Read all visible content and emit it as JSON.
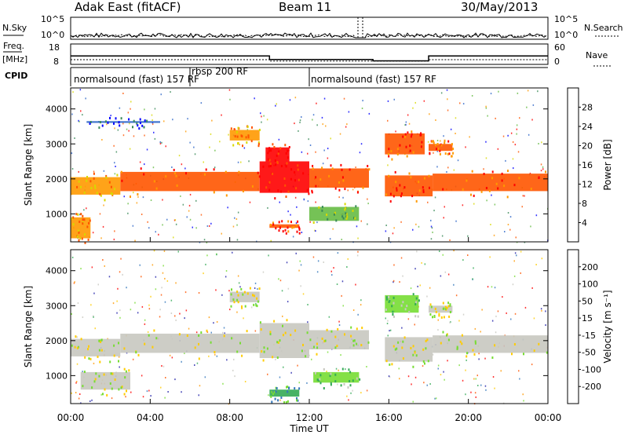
{
  "header": {
    "station": "Adak East (fitACF)",
    "beam": "Beam 11",
    "date": "30/May/2013"
  },
  "labels": {
    "nsky": "N.Sky",
    "nsearch": "N.Search",
    "freq_line1": "Freq.",
    "freq_line2": "[MHz]",
    "nave": "Nave",
    "cpid": "CPID",
    "slant_range": "Slant Range [km]",
    "power_title": "Power [dB]",
    "velocity_title": "Velocity [m s⁻¹]",
    "x_axis_title": "Time UT"
  },
  "chart_data": [
    {
      "type": "line",
      "panel": "noise",
      "y_ticks_left": [
        "10^5",
        "10^0"
      ],
      "y_ticks_right": [
        "10^5",
        "10^0"
      ],
      "series": [
        {
          "name": "N.Sky"
        },
        {
          "name": "N.Search"
        }
      ]
    },
    {
      "type": "line",
      "panel": "frequency-nave",
      "y_ticks_left": [
        "18",
        "8"
      ],
      "y_ticks_right": [
        "60",
        "0"
      ],
      "freq_mhz_segments": [
        {
          "start_h": 0,
          "end_h": 10.0,
          "value": 14
        },
        {
          "start_h": 10.0,
          "end_h": 15.2,
          "value": 11.5
        },
        {
          "start_h": 15.2,
          "end_h": 18.0,
          "value": 10.5
        },
        {
          "start_h": 18.0,
          "end_h": 24.0,
          "value": 14
        }
      ],
      "nave_segments": [
        {
          "start_h": 0,
          "end_h": 10.0,
          "value": 20
        },
        {
          "start_h": 10.0,
          "end_h": 18.0,
          "value": 14
        },
        {
          "start_h": 18.0,
          "end_h": 24.0,
          "value": 20
        }
      ]
    },
    {
      "type": "table",
      "panel": "cpid",
      "programs": [
        {
          "label": "normalsound (fast) 157 RF",
          "start_h": 0
        },
        {
          "label": "rbsp 200 RF",
          "start_h": 6.0
        },
        {
          "label": "normalsound (fast) 157 RF",
          "start_h": 12.0
        }
      ]
    },
    {
      "type": "heatmap",
      "panel": "power",
      "ylabel": "Slant Range [km]",
      "xlim": [
        0,
        24
      ],
      "ylim": [
        200,
        4600
      ],
      "y_ticks": [
        1000,
        2000,
        3000,
        4000
      ],
      "colorbar": {
        "title": "Power [dB]",
        "ticks": [
          "4",
          "8",
          "12",
          "16",
          "20",
          "24",
          "28"
        ],
        "colors": [
          "#0000ff",
          "#2e66c8",
          "#3a8a58",
          "#66bb44",
          "#d8d800",
          "#ff9900",
          "#ff5500",
          "#ff0000"
        ]
      },
      "bands": [
        {
          "x0": 0.0,
          "x1": 2.5,
          "y0": 1550,
          "y1": 2050,
          "level": 5
        },
        {
          "x0": 2.5,
          "x1": 9.5,
          "y0": 1650,
          "y1": 2200,
          "level": 6
        },
        {
          "x0": 9.5,
          "x1": 12.0,
          "y0": 1600,
          "y1": 2500,
          "level": 7
        },
        {
          "x0": 12.0,
          "x1": 15.0,
          "y0": 1750,
          "y1": 2300,
          "level": 6
        },
        {
          "x0": 15.8,
          "x1": 18.2,
          "y0": 1500,
          "y1": 2100,
          "level": 6
        },
        {
          "x0": 18.2,
          "x1": 24.0,
          "y0": 1650,
          "y1": 2150,
          "level": 6
        },
        {
          "x0": 8.0,
          "x1": 9.5,
          "y0": 3100,
          "y1": 3400,
          "level": 5
        },
        {
          "x0": 9.8,
          "x1": 11.0,
          "y0": 2500,
          "y1": 2900,
          "level": 7
        },
        {
          "x0": 15.8,
          "x1": 17.8,
          "y0": 2700,
          "y1": 3300,
          "level": 6
        },
        {
          "x0": 18.0,
          "x1": 19.2,
          "y0": 2800,
          "y1": 3000,
          "level": 6
        },
        {
          "x0": 0.0,
          "x1": 1.0,
          "y0": 300,
          "y1": 900,
          "level": 5
        },
        {
          "x0": 0.8,
          "x1": 4.5,
          "y0": 3600,
          "y1": 3650,
          "level": 1
        },
        {
          "x0": 12.0,
          "x1": 14.5,
          "y0": 800,
          "y1": 1200,
          "level": 3
        },
        {
          "x0": 10.0,
          "x1": 11.5,
          "y0": 600,
          "y1": 700,
          "level": 6
        }
      ]
    },
    {
      "type": "heatmap",
      "panel": "velocity",
      "ylabel": "Slant Range [km]",
      "xlabel": "Time UT",
      "xlim": [
        0,
        24
      ],
      "ylim": [
        200,
        4600
      ],
      "y_ticks": [
        1000,
        2000,
        3000,
        4000
      ],
      "x_ticks": [
        "00:00",
        "04:00",
        "08:00",
        "12:00",
        "16:00",
        "20:00",
        "00:00"
      ],
      "colorbar": {
        "title": "Velocity [m s⁻¹]",
        "ticks": [
          "200",
          "100",
          "50",
          "15",
          "-15",
          "-50",
          "-100",
          "-200"
        ],
        "colors": [
          "#2222aa",
          "#3377bb",
          "#33aa55",
          "#77dd33",
          "#c8c8c0",
          "#ffcc00",
          "#ff9900",
          "#ff5500",
          "#ff0000"
        ]
      },
      "bands": [
        {
          "x0": 0.0,
          "x1": 2.5,
          "y0": 1550,
          "y1": 2050,
          "level": 4
        },
        {
          "x0": 2.5,
          "x1": 9.5,
          "y0": 1650,
          "y1": 2200,
          "level": 4
        },
        {
          "x0": 9.5,
          "x1": 12.0,
          "y0": 1500,
          "y1": 2500,
          "level": 4
        },
        {
          "x0": 12.0,
          "x1": 15.0,
          "y0": 1750,
          "y1": 2300,
          "level": 4
        },
        {
          "x0": 15.8,
          "x1": 18.2,
          "y0": 1400,
          "y1": 2100,
          "level": 4
        },
        {
          "x0": 18.2,
          "x1": 24.0,
          "y0": 1650,
          "y1": 2150,
          "level": 4
        },
        {
          "x0": 0.5,
          "x1": 3.0,
          "y0": 600,
          "y1": 1100,
          "level": 4
        },
        {
          "x0": 15.8,
          "x1": 17.5,
          "y0": 2800,
          "y1": 3300,
          "level": 3
        },
        {
          "x0": 18.0,
          "x1": 19.2,
          "y0": 2800,
          "y1": 3000,
          "level": 4
        },
        {
          "x0": 12.2,
          "x1": 14.5,
          "y0": 800,
          "y1": 1100,
          "level": 3
        },
        {
          "x0": 10.0,
          "x1": 11.5,
          "y0": 400,
          "y1": 600,
          "level": 2
        },
        {
          "x0": 8.0,
          "x1": 9.5,
          "y0": 3100,
          "y1": 3400,
          "level": 4
        }
      ]
    }
  ]
}
